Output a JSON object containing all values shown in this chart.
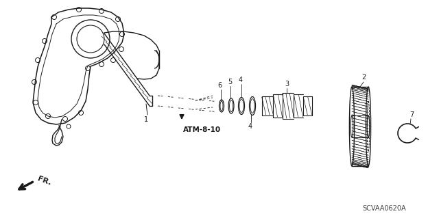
{
  "bg_color": "#ffffff",
  "line_color": "#1a1a1a",
  "part_label_ATM": "ATM-8-10",
  "diagram_code": "SCVAA0620A",
  "fr_label": "FR."
}
